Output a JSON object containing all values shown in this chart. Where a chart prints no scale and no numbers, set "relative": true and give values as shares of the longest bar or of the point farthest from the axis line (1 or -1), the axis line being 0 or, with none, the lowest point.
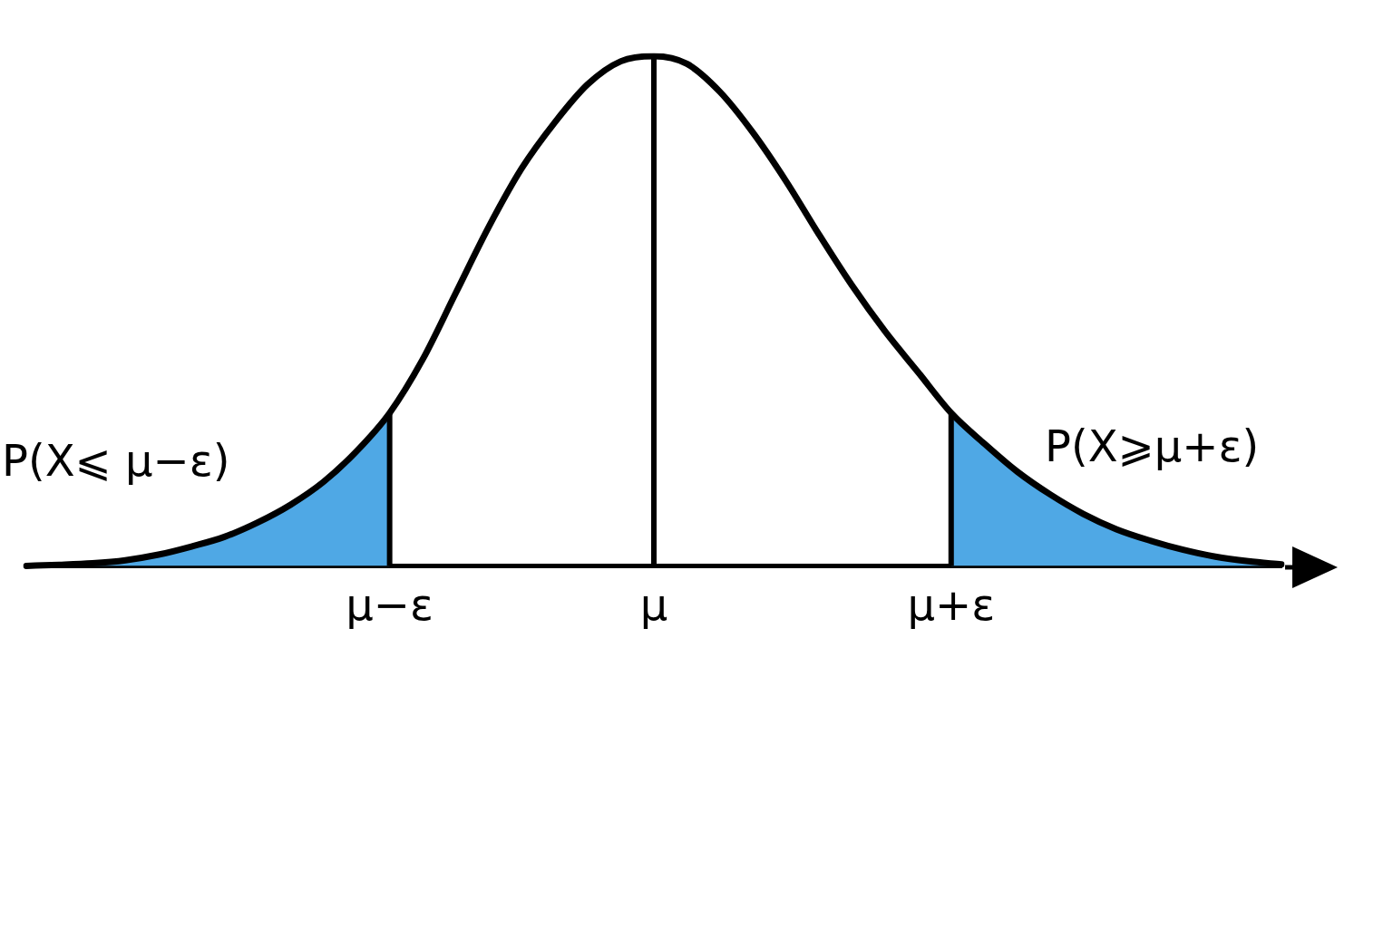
{
  "chart_data": {
    "type": "line",
    "relative": true,
    "legend": false,
    "categories": [
      null,
      null,
      null,
      null,
      null,
      null,
      null,
      null,
      null,
      null,
      null,
      "μ−ε",
      null,
      null,
      null,
      null,
      null,
      null,
      null,
      "μ",
      null,
      null,
      null,
      null,
      null,
      null,
      null,
      null,
      "μ+ε",
      null,
      null,
      null,
      null,
      null,
      null,
      null,
      null,
      null,
      null
    ],
    "series": [
      {
        "type": "line",
        "color": "#000000",
        "values": [
          0,
          0.002,
          0.005,
          0.011,
          0.022,
          0.038,
          0.057,
          0.085,
          0.12,
          0.165,
          0.225,
          0.3,
          0.405,
          0.535,
          0.665,
          0.78,
          0.87,
          0.945,
          0.99,
          1,
          0.985,
          0.93,
          0.85,
          0.755,
          0.65,
          0.55,
          0.46,
          0.38,
          0.3,
          0.24,
          0.185,
          0.14,
          0.102,
          0.072,
          0.05,
          0.032,
          0.018,
          0.009,
          0.003
        ]
      },
      {
        "type": "area",
        "color": "#4fa8e5",
        "values": [
          0,
          0.002,
          0.005,
          0.011,
          0.022,
          0.038,
          0.057,
          0.085,
          0.12,
          0.165,
          0.225,
          0.3,
          null,
          null,
          null,
          null,
          null,
          null,
          null,
          null,
          null,
          null,
          null,
          null,
          null,
          null,
          null,
          null,
          null,
          null,
          null,
          null,
          null,
          null,
          null,
          null,
          null,
          null,
          null
        ]
      },
      {
        "type": "area",
        "color": "#4fa8e5",
        "values": [
          null,
          null,
          null,
          null,
          null,
          null,
          null,
          null,
          null,
          null,
          null,
          null,
          null,
          null,
          null,
          null,
          null,
          null,
          null,
          null,
          null,
          null,
          null,
          null,
          null,
          null,
          null,
          null,
          0.3,
          0.24,
          0.185,
          0.14,
          0.102,
          0.072,
          0.05,
          0.032,
          0.018,
          0.009,
          0.003
        ]
      }
    ],
    "ref_lines": [
      {
        "axis": "x",
        "value": "μ−ε",
        "color": "#000000"
      },
      {
        "axis": "x",
        "value": "μ",
        "color": "#000000"
      },
      {
        "axis": "x",
        "value": "μ+ε",
        "color": "#000000"
      }
    ],
    "annotations": [
      "P(X⩽ μ−ε)",
      "P(X⩾μ+ε)"
    ]
  }
}
